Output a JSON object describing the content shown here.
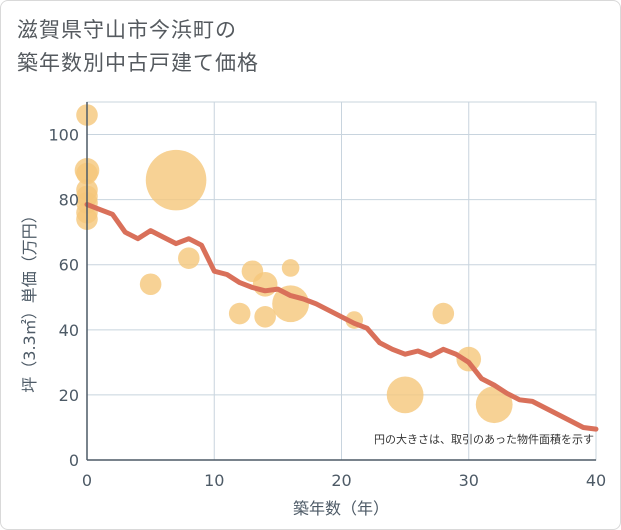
{
  "chart_data": {
    "type": "scatter",
    "title_lines": [
      "滋賀県守山市今浜町の",
      "築年数別中古戸建て価格"
    ],
    "xlabel": "築年数（年）",
    "ylabel": "坪（3.3㎡）単価（万円）",
    "xlim": [
      0,
      40
    ],
    "ylim": [
      0,
      110
    ],
    "x_ticks": [
      0,
      10,
      20,
      30,
      40
    ],
    "y_ticks": [
      0,
      20,
      40,
      60,
      80,
      100
    ],
    "note": "円の大きさは、取引のあった物件面積を示す",
    "grid": true,
    "colors": {
      "bubble": "#f5c77a",
      "trend": "#d9705a",
      "grid": "#c8d4de",
      "axis": "#4d5a66"
    },
    "bubbles": [
      {
        "x": 0,
        "y": 106,
        "size": 2
      },
      {
        "x": 0,
        "y": 89,
        "size": 3
      },
      {
        "x": 0,
        "y": 88,
        "size": 2
      },
      {
        "x": 0,
        "y": 83,
        "size": 2
      },
      {
        "x": 0,
        "y": 81,
        "size": 2
      },
      {
        "x": 0,
        "y": 79,
        "size": 2
      },
      {
        "x": 0,
        "y": 76,
        "size": 2
      },
      {
        "x": 0,
        "y": 74,
        "size": 2
      },
      {
        "x": 7,
        "y": 86,
        "size": 30
      },
      {
        "x": 5,
        "y": 54,
        "size": 2
      },
      {
        "x": 8,
        "y": 62,
        "size": 2
      },
      {
        "x": 13,
        "y": 58,
        "size": 2
      },
      {
        "x": 14,
        "y": 54,
        "size": 3
      },
      {
        "x": 16,
        "y": 59,
        "size": 1
      },
      {
        "x": 12,
        "y": 45,
        "size": 2
      },
      {
        "x": 14,
        "y": 44,
        "size": 2
      },
      {
        "x": 16,
        "y": 48,
        "size": 9
      },
      {
        "x": 21,
        "y": 43,
        "size": 1
      },
      {
        "x": 28,
        "y": 45,
        "size": 2
      },
      {
        "x": 30,
        "y": 31,
        "size": 3
      },
      {
        "x": 25,
        "y": 20,
        "size": 9
      },
      {
        "x": 32,
        "y": 17,
        "size": 9
      }
    ],
    "trend": {
      "x": [
        0,
        1,
        2,
        3,
        4,
        5,
        6,
        7,
        8,
        9,
        10,
        11,
        12,
        13,
        14,
        15,
        16,
        17,
        18,
        19,
        20,
        21,
        22,
        23,
        24,
        25,
        26,
        27,
        28,
        29,
        30,
        31,
        32,
        33,
        34,
        35,
        36,
        37,
        38,
        39,
        40
      ],
      "y": [
        78.5,
        77,
        75.5,
        70,
        68,
        70.5,
        68.5,
        66.5,
        68,
        66,
        58,
        57,
        54.5,
        53,
        52,
        52.5,
        50.5,
        49.5,
        48,
        46,
        44,
        42,
        40.5,
        36,
        34,
        32.5,
        33.5,
        32,
        34,
        32.5,
        30,
        25,
        23,
        20.5,
        18.5,
        18,
        16,
        14,
        12,
        10,
        9.5
      ]
    }
  }
}
